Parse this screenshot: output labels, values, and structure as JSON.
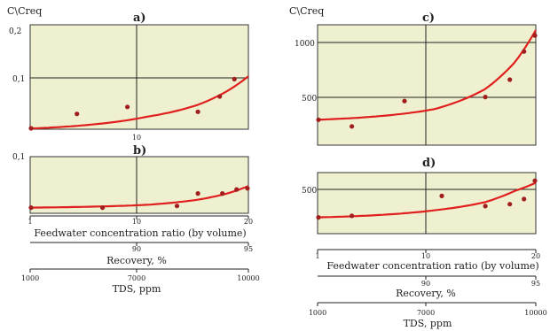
{
  "chart_data": [
    {
      "panel": "a)",
      "type": "scatter",
      "ylabel": "C\\Creq",
      "x_axis_ticks": [
        "10"
      ],
      "y_ticks": [
        "0,2",
        "0,1"
      ],
      "ylim": [
        0.05,
        0.2
      ],
      "x_scale": "log",
      "xlim": [
        1,
        20
      ],
      "points": [
        {
          "x": 1.0,
          "y": 0.051
        },
        {
          "x": 1.9,
          "y": 0.072
        },
        {
          "x": 3.8,
          "y": 0.082
        },
        {
          "x": 10.0,
          "y": 0.075
        },
        {
          "x": 13.5,
          "y": 0.097
        },
        {
          "x": 16.5,
          "y": 0.122
        }
      ],
      "trend": {
        "x": [
          1,
          5,
          10,
          15,
          20
        ],
        "y": [
          0.051,
          0.068,
          0.085,
          0.105,
          0.126
        ]
      }
    },
    {
      "panel": "b)",
      "type": "scatter",
      "ylabel": "",
      "y_ticks": [
        "0,1"
      ],
      "ylim": [
        0.0,
        0.1
      ],
      "x_scale": "log",
      "xlim": [
        1,
        20
      ],
      "points": [
        {
          "x": 1.0,
          "y": 0.01
        },
        {
          "x": 2.7,
          "y": 0.01
        },
        {
          "x": 7.5,
          "y": 0.013
        },
        {
          "x": 10.0,
          "y": 0.035
        },
        {
          "x": 14.0,
          "y": 0.035
        },
        {
          "x": 17.0,
          "y": 0.042
        },
        {
          "x": 20.0,
          "y": 0.044
        }
      ],
      "trend": {
        "x": [
          1,
          5,
          10,
          15,
          20
        ],
        "y": [
          0.01,
          0.015,
          0.024,
          0.035,
          0.048
        ]
      },
      "axes_below": [
        {
          "label": "Feedwater concentration ratio (by volume)",
          "ticks": [
            "1",
            "10",
            "20"
          ]
        },
        {
          "label": "Recovery, %",
          "ticks": [
            "90",
            "95"
          ]
        },
        {
          "label": "TDS, ppm",
          "ticks": [
            "1000",
            "7000",
            "10000"
          ]
        }
      ]
    },
    {
      "panel": "c)",
      "type": "scatter",
      "ylabel": "C\\Creq",
      "y_ticks": [
        "1000",
        "500"
      ],
      "ylim": [
        200,
        1100
      ],
      "x_scale": "log",
      "xlim": [
        1,
        20
      ],
      "points": [
        {
          "x": 1.0,
          "y": 390
        },
        {
          "x": 1.6,
          "y": 340
        },
        {
          "x": 3.3,
          "y": 530
        },
        {
          "x": 10.0,
          "y": 560
        },
        {
          "x": 14.0,
          "y": 690
        },
        {
          "x": 17.0,
          "y": 900
        },
        {
          "x": 20.0,
          "y": 1020
        }
      ],
      "trend": {
        "x": [
          1,
          5,
          10,
          15,
          20
        ],
        "y": [
          390,
          470,
          620,
          820,
          1060
        ]
      }
    },
    {
      "panel": "d)",
      "type": "scatter",
      "ylabel": "",
      "y_ticks": [
        "500"
      ],
      "ylim": [
        0,
        600
      ],
      "x_scale": "log",
      "xlim": [
        1,
        20
      ],
      "points": [
        {
          "x": 1.0,
          "y": 160
        },
        {
          "x": 1.6,
          "y": 175
        },
        {
          "x": 5.5,
          "y": 370
        },
        {
          "x": 10.0,
          "y": 270
        },
        {
          "x": 14.0,
          "y": 290
        },
        {
          "x": 17.0,
          "y": 340
        },
        {
          "x": 20.0,
          "y": 520
        }
      ],
      "trend": {
        "x": [
          1,
          5,
          10,
          15,
          20
        ],
        "y": [
          160,
          230,
          310,
          420,
          500
        ]
      },
      "axes_below": [
        {
          "label": "Feedwater concentration ratio (by volume)",
          "ticks": [
            "1",
            "10",
            "20"
          ]
        },
        {
          "label": "Recovery, %",
          "ticks": [
            "90",
            "95"
          ]
        },
        {
          "label": "TDS, ppm",
          "ticks": [
            "1000",
            "7000",
            "10000"
          ]
        }
      ]
    }
  ],
  "colors": {
    "panel_fill": "#eff0cf",
    "points": "#a01e1e",
    "trend": "#e0201f",
    "grid": "#222222"
  }
}
